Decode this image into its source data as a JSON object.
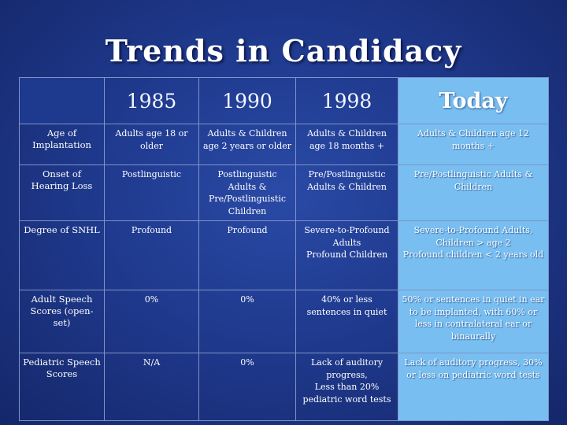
{
  "title": "Trends in Candidacy",
  "columns": [
    "1985",
    "1990",
    "1998",
    "Today"
  ],
  "rows": [
    {
      "label": "Age of Implantation",
      "cells": [
        "Adults age 18 or older",
        "Adults & Children age 2 years or older",
        "Adults & Children age 18 months +",
        "Adults & Children age 12 months +"
      ]
    },
    {
      "label": "Onset of Hearing Loss",
      "cells": [
        "Postlinguistic",
        "Postlinguistic Adults & Pre/Postlinguistic Children",
        "Pre/Postlinguistic Adults & Children",
        "Pre/Postlinguistic Adults & Children"
      ]
    },
    {
      "label": "Degree of SNHL",
      "cells": [
        "Profound",
        "Profound",
        "Severe-to-Profound Adults\nProfound Children",
        "Severe-to-Profound Adults, Children > age 2\nProfound children < 2 years old"
      ]
    },
    {
      "label": "Adult Speech Scores (open-set)",
      "cells": [
        "0%",
        "0%",
        "40% or less sentences in quiet",
        "50% or sentences in quiet in ear to be implanted, with 60% or less in contralateral ear or binaurally"
      ]
    },
    {
      "label": "Pediatric Speech Scores",
      "cells": [
        "N/A",
        "0%",
        "Lack of auditory progress,\nLess than 20% pediatric word tests",
        "Lack of auditory progress, 30% or less on pediatric word tests"
      ]
    }
  ]
}
